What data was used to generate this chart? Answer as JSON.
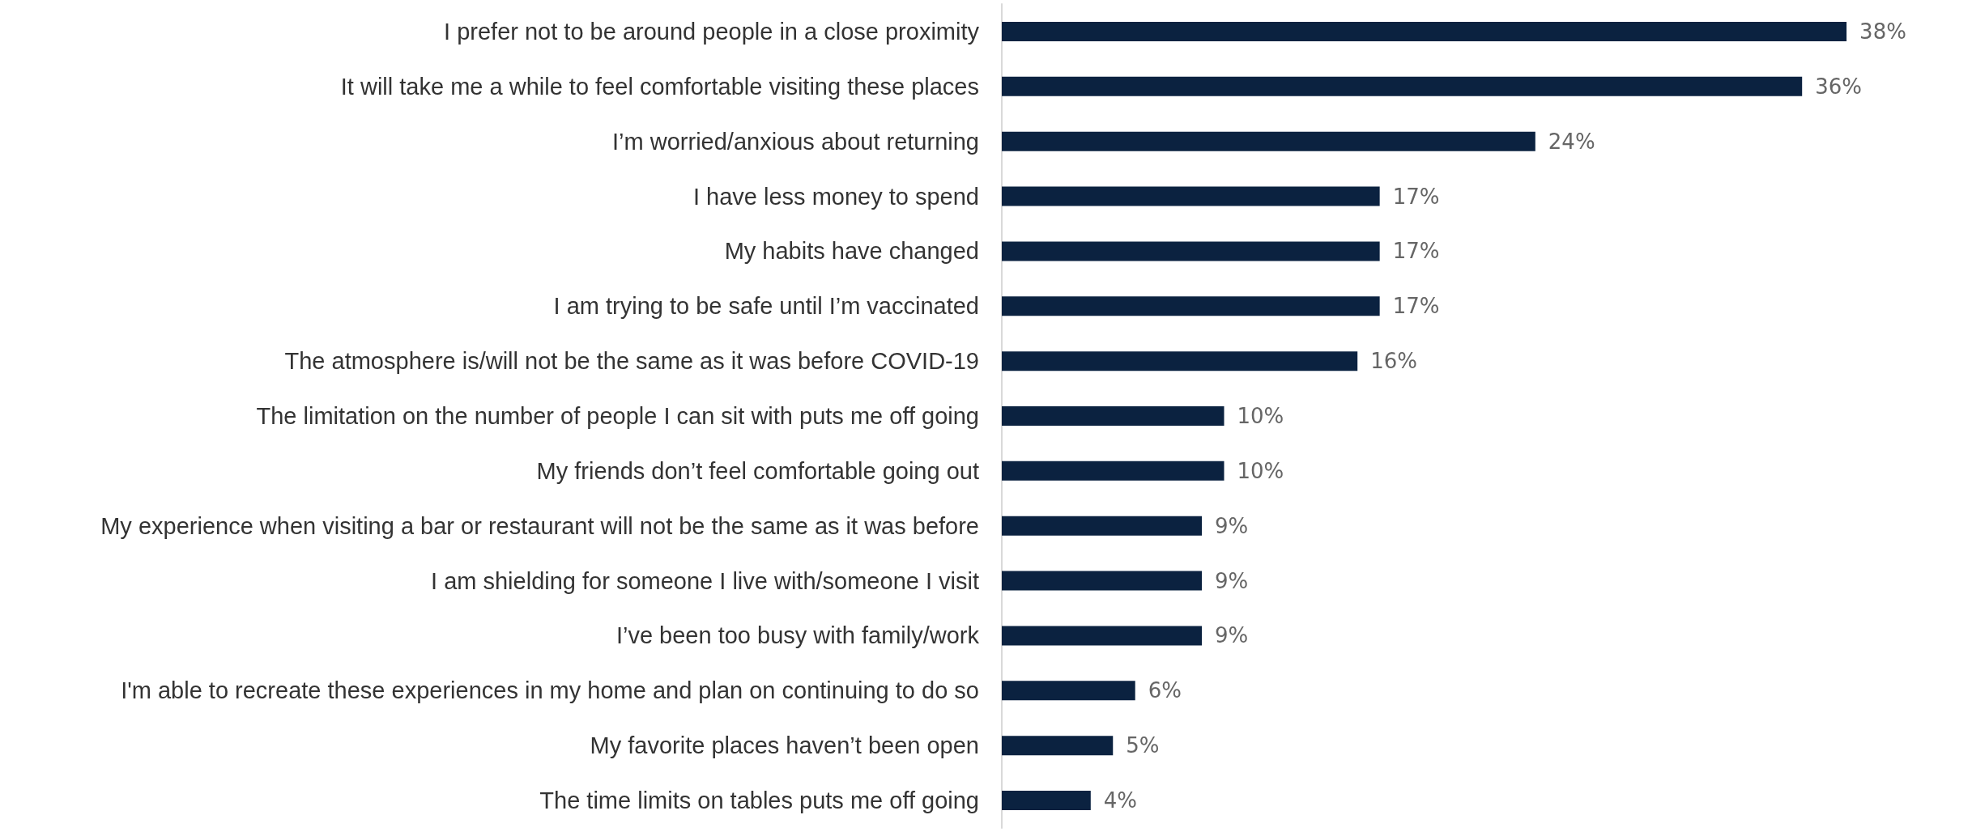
{
  "chart_data": {
    "type": "bar",
    "orientation": "horizontal",
    "categories": [
      "I prefer not to be around people in a close proximity",
      "It will take me a while to feel comfortable visiting these places",
      "I’m worried/anxious about returning",
      "I have less money to spend",
      "My habits have changed",
      "I am trying to be safe until I’m vaccinated",
      "The atmosphere is/will not be the same as it was before COVID-19",
      "The limitation on the number of people I can sit with puts me off going",
      "My friends don’t feel comfortable going out",
      "My experience when visiting a bar or restaurant will not be the same as it was before",
      "I am shielding for someone I live with/someone I visit",
      "I’ve been too busy with family/work",
      "I'm able to recreate these experiences in my home and plan on continuing to do so",
      "My favorite places haven’t been open",
      "The time limits on tables puts me off going"
    ],
    "values": [
      38,
      36,
      24,
      17,
      17,
      17,
      16,
      10,
      10,
      9,
      9,
      9,
      6,
      5,
      4
    ],
    "value_labels": [
      "38%",
      "36%",
      "24%",
      "17%",
      "17%",
      "17%",
      "16%",
      "10%",
      "10%",
      "9%",
      "9%",
      "9%",
      "6%",
      "5%",
      "4%"
    ],
    "color": "#0b2240"
  }
}
